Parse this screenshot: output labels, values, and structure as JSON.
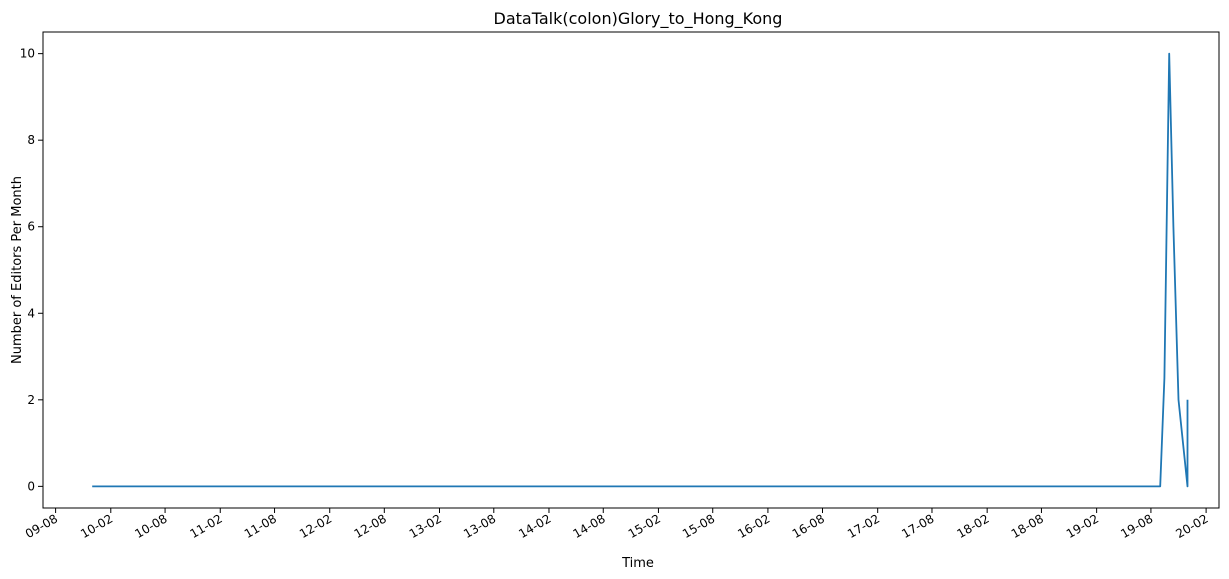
{
  "chart_data": {
    "type": "line",
    "title": "DataTalk(colon)Glory_to_Hong_Kong",
    "xlabel": "Time",
    "ylabel": "Number of Editors Per Month",
    "x_tick_labels": [
      "09-08",
      "10-02",
      "10-08",
      "11-02",
      "11-08",
      "12-02",
      "12-08",
      "13-02",
      "13-08",
      "14-02",
      "14-08",
      "15-02",
      "15-08",
      "16-02",
      "16-08",
      "17-02",
      "17-08",
      "18-02",
      "18-08",
      "19-02",
      "19-08",
      "20-02"
    ],
    "x_tick_dates": [
      "2009-08-01",
      "2010-02-01",
      "2010-08-01",
      "2011-02-01",
      "2011-08-01",
      "2012-02-01",
      "2012-08-01",
      "2013-02-01",
      "2013-08-01",
      "2014-02-01",
      "2014-08-01",
      "2015-02-01",
      "2015-08-01",
      "2016-02-01",
      "2016-08-01",
      "2017-02-01",
      "2017-08-01",
      "2018-02-01",
      "2018-08-01",
      "2019-02-01",
      "2019-08-01",
      "2020-02-01"
    ],
    "xlim": [
      "2009-06-20",
      "2020-03-15"
    ],
    "y_ticks": [
      0,
      2,
      4,
      6,
      8,
      10
    ],
    "ylim": [
      -0.5,
      10.5
    ],
    "grid": false,
    "series": [
      {
        "color": "#1f77b4",
        "x": [
          "2009-12-01",
          "2019-09-01",
          "2019-09-15",
          "2019-10-01",
          "2019-10-15",
          "2019-11-01",
          "2019-12-01",
          "2019-12-01"
        ],
        "y": [
          0,
          0,
          2.5,
          10,
          6,
          2,
          0,
          2
        ]
      }
    ]
  }
}
